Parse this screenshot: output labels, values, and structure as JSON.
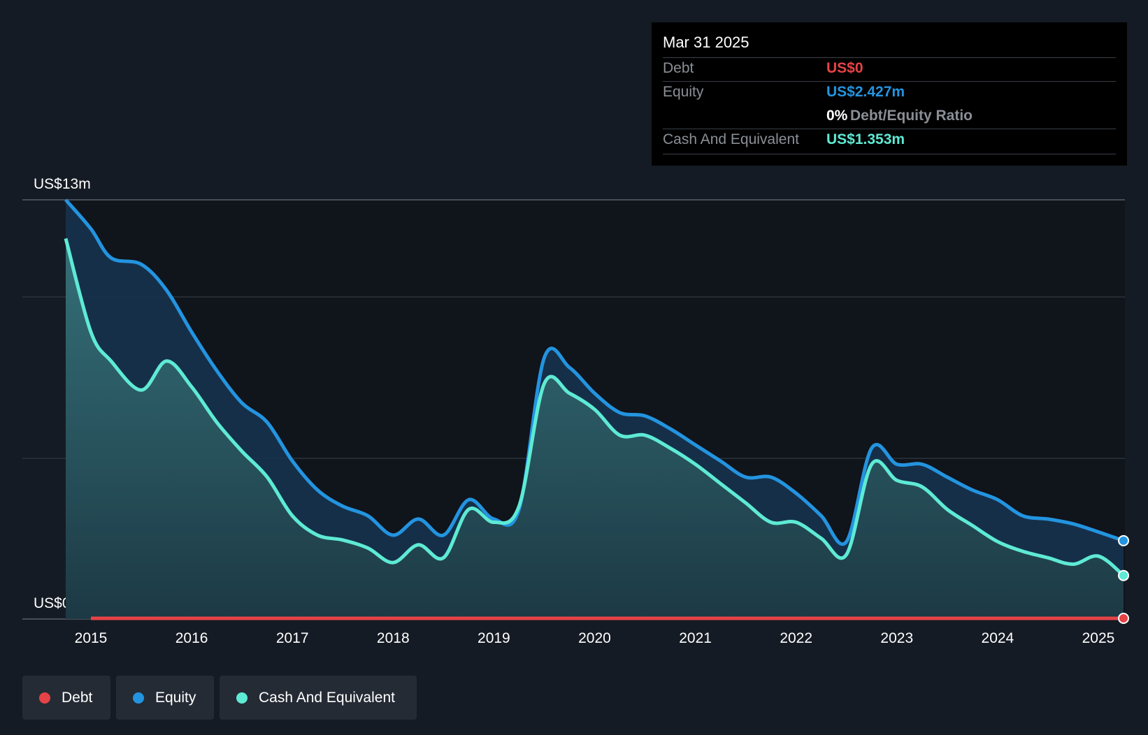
{
  "colors": {
    "debt": "#e64347",
    "equity": "#2394df",
    "cash": "#5eead4",
    "background": "#151b24",
    "plot_bg": "#10141b"
  },
  "tooltip": {
    "date": "Mar 31 2025",
    "debt_label": "Debt",
    "debt_value": "US$0",
    "equity_label": "Equity",
    "equity_value": "US$2.427m",
    "ratio_value": "0%",
    "ratio_label": "Debt/Equity Ratio",
    "cash_label": "Cash And Equivalent",
    "cash_value": "US$1.353m"
  },
  "legend": {
    "debt": "Debt",
    "equity": "Equity",
    "cash": "Cash And Equivalent"
  },
  "chart_data": {
    "type": "area",
    "title": "",
    "xlabel": "",
    "ylabel": "",
    "y_top_label": "US$13m",
    "y_bottom_label": "US$0",
    "ylim": [
      0,
      13
    ],
    "xlim": [
      2014.6,
      2025.25
    ],
    "x_ticks": [
      "2015",
      "2016",
      "2017",
      "2018",
      "2019",
      "2020",
      "2021",
      "2022",
      "2023",
      "2024",
      "2025"
    ],
    "grid": true,
    "series": [
      {
        "name": "Equity",
        "x": [
          2014.75,
          2015.0,
          2015.2,
          2015.5,
          2015.75,
          2016.0,
          2016.25,
          2016.5,
          2016.75,
          2017.0,
          2017.25,
          2017.5,
          2017.75,
          2018.0,
          2018.25,
          2018.5,
          2018.75,
          2019.0,
          2019.25,
          2019.5,
          2019.75,
          2020.0,
          2020.25,
          2020.5,
          2020.75,
          2021.0,
          2021.25,
          2021.5,
          2021.75,
          2022.0,
          2022.25,
          2022.5,
          2022.75,
          2023.0,
          2023.25,
          2023.5,
          2023.75,
          2024.0,
          2024.25,
          2024.5,
          2024.75,
          2025.0,
          2025.25
        ],
        "values": [
          13.0,
          12.1,
          11.2,
          11.0,
          10.2,
          8.9,
          7.7,
          6.7,
          6.1,
          4.9,
          4.0,
          3.5,
          3.2,
          2.6,
          3.1,
          2.6,
          3.7,
          3.1,
          3.4,
          8.1,
          7.8,
          7.0,
          6.4,
          6.3,
          5.9,
          5.4,
          4.9,
          4.4,
          4.4,
          3.9,
          3.2,
          2.4,
          5.3,
          4.8,
          4.8,
          4.4,
          4.0,
          3.7,
          3.2,
          3.1,
          2.95,
          2.7,
          2.43
        ]
      },
      {
        "name": "Cash And Equivalent",
        "x": [
          2014.75,
          2015.0,
          2015.2,
          2015.5,
          2015.75,
          2016.0,
          2016.25,
          2016.5,
          2016.75,
          2017.0,
          2017.25,
          2017.5,
          2017.75,
          2018.0,
          2018.25,
          2018.5,
          2018.75,
          2019.0,
          2019.25,
          2019.5,
          2019.75,
          2020.0,
          2020.25,
          2020.5,
          2020.75,
          2021.0,
          2021.25,
          2021.5,
          2021.75,
          2022.0,
          2022.25,
          2022.5,
          2022.75,
          2023.0,
          2023.25,
          2023.5,
          2023.75,
          2024.0,
          2024.25,
          2024.5,
          2024.75,
          2025.0,
          2025.25
        ],
        "values": [
          11.8,
          8.9,
          8.0,
          7.1,
          8.0,
          7.2,
          6.1,
          5.2,
          4.4,
          3.2,
          2.6,
          2.45,
          2.2,
          1.75,
          2.3,
          1.9,
          3.4,
          3.0,
          3.5,
          7.3,
          7.0,
          6.5,
          5.7,
          5.7,
          5.3,
          4.8,
          4.2,
          3.6,
          3.0,
          3.0,
          2.5,
          2.0,
          4.8,
          4.3,
          4.1,
          3.4,
          2.9,
          2.4,
          2.1,
          1.9,
          1.7,
          1.95,
          1.35
        ]
      },
      {
        "name": "Debt",
        "x": [
          2015.0,
          2025.25
        ],
        "values": [
          0,
          0
        ]
      }
    ]
  }
}
